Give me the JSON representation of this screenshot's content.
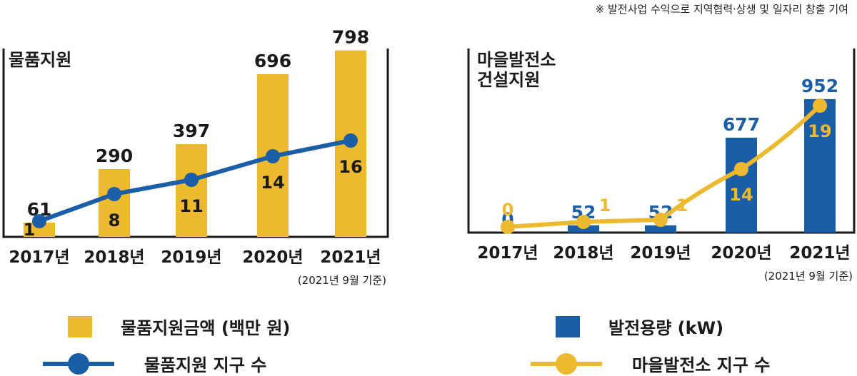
{
  "note": "※ 발전사업 수익으로 지역협력·상생 및 일자리 창출 기여",
  "colors": {
    "gold": "#EDB92E",
    "blue": "#1B5EA8",
    "axis": "#1a1a1a"
  },
  "chart_data": [
    {
      "type": "bar",
      "title": "물품지원",
      "categories": [
        "2017년",
        "2018년",
        "2019년",
        "2020년",
        "2021년"
      ],
      "axis_note": "(2021년 9월  기준)",
      "ylim": [
        0,
        900
      ],
      "ylim_line": [
        0,
        20
      ],
      "series": [
        {
          "name": "물품지원금액 (백만 원)",
          "kind": "bar",
          "values": [
            61,
            290,
            397,
            696,
            798
          ],
          "color": "#EDB92E"
        },
        {
          "name": "물품지원 지구 수",
          "kind": "line",
          "values": [
            1,
            8,
            11,
            14,
            16
          ],
          "color": "#1B5EA8"
        }
      ]
    },
    {
      "type": "bar",
      "title": "마을발전소\n건설지원",
      "categories": [
        "2017년",
        "2018년",
        "2019년",
        "2020년",
        "2021년"
      ],
      "axis_note": "(2021년 9월  기준)",
      "ylim": [
        0,
        1000
      ],
      "ylim_line": [
        0,
        20
      ],
      "series": [
        {
          "name": "발전용량 (kW)",
          "kind": "bar",
          "values": [
            0,
            52,
            52,
            677,
            952
          ],
          "color": "#1B5EA8"
        },
        {
          "name": "마을발전소 지구 수",
          "kind": "line",
          "values": [
            0,
            1,
            1,
            14,
            19
          ],
          "color": "#EDB92E"
        }
      ]
    }
  ],
  "legend_left": [
    {
      "label": "물품지원금액 (백만 원)"
    },
    {
      "label": "물품지원 지구 수"
    }
  ],
  "legend_right": [
    {
      "label": "발전용량 (kW)"
    },
    {
      "label": "마을발전소 지구 수"
    }
  ]
}
